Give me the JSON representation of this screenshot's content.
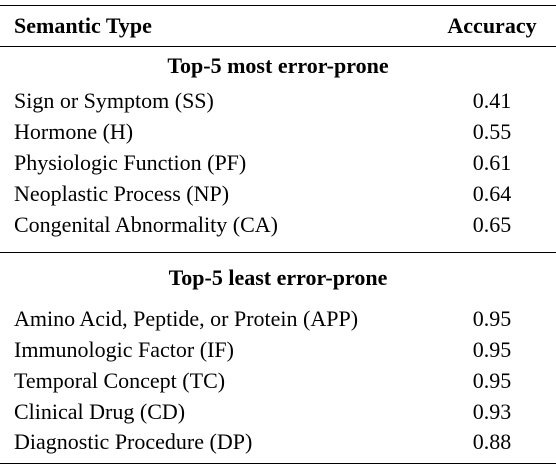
{
  "header": {
    "col_type": "Semantic Type",
    "col_accuracy": "Accuracy"
  },
  "groups": [
    {
      "title": "Top-5 most error-prone",
      "rows": [
        {
          "type": "Sign or Symptom (SS)",
          "accuracy": "0.41"
        },
        {
          "type": "Hormone (H)",
          "accuracy": "0.55"
        },
        {
          "type": "Physiologic Function (PF)",
          "accuracy": "0.61"
        },
        {
          "type": "Neoplastic Process (NP)",
          "accuracy": "0.64"
        },
        {
          "type": "Congenital Abnormality (CA)",
          "accuracy": "0.65"
        }
      ]
    },
    {
      "title": "Top-5 least error-prone",
      "rows": [
        {
          "type": "Amino Acid, Peptide, or Protein (APP)",
          "accuracy": "0.95"
        },
        {
          "type": "Immunologic Factor (IF)",
          "accuracy": "0.95"
        },
        {
          "type": "Temporal Concept (TC)",
          "accuracy": "0.95"
        },
        {
          "type": "Clinical Drug (CD)",
          "accuracy": "0.93"
        },
        {
          "type": "Diagnostic Procedure (DP)",
          "accuracy": "0.88"
        }
      ]
    }
  ]
}
